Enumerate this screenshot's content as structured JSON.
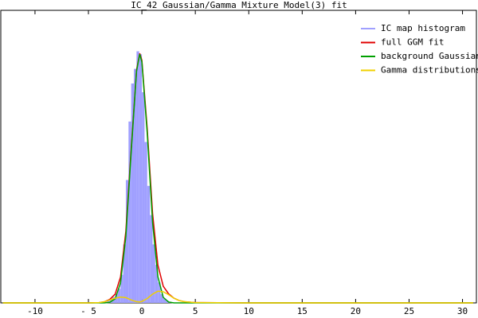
{
  "chart_data": {
    "type": "histogram",
    "title": "IC_42 Gaussian/Gamma Mixture Model(3) fit",
    "name": "IC map histogram",
    "color": "#a0a0ff",
    "bins": [
      -3.5,
      -3.25,
      -3,
      -2.75,
      -2.5,
      -2.25,
      -2,
      -1.75,
      -1.5,
      -1.25,
      -1,
      -0.75,
      -0.5,
      -0.25,
      0,
      0.25,
      0.5,
      0.75,
      1,
      1.25,
      1.5,
      1.75,
      2,
      2.25,
      2.5,
      2.75,
      3
    ],
    "counts": [
      0.005,
      0.01,
      0.015,
      0.02,
      0.03,
      0.048,
      0.096,
      0.2,
      0.42,
      0.62,
      0.75,
      0.8,
      0.86,
      0.85,
      0.72,
      0.55,
      0.4,
      0.3,
      0.2,
      0.13,
      0.07,
      0.03,
      0.015,
      0.008,
      0.004,
      0.002
    ],
    "series": [
      {
        "name": "full GGM fit",
        "color": "#e00000",
        "x": [
          -13,
          -5,
          -4,
          -3.5,
          -3,
          -2.5,
          -2,
          -1.5,
          -1,
          -0.5,
          -0.2,
          0,
          0.5,
          1,
          1.5,
          2,
          2.5,
          3,
          3.5,
          4,
          5,
          10,
          31
        ],
        "values": [
          0,
          0,
          0.001,
          0.004,
          0.012,
          0.03,
          0.088,
          0.245,
          0.526,
          0.796,
          0.853,
          0.829,
          0.595,
          0.306,
          0.129,
          0.057,
          0.031,
          0.016,
          0.008,
          0.004,
          0.001,
          0,
          0
        ]
      },
      {
        "name": "background Gaussian",
        "color": "#00a000",
        "x": [
          -13,
          -5,
          -4,
          -3.5,
          -3,
          -2.5,
          -2,
          -1.5,
          -1,
          -0.5,
          -0.2,
          0,
          0.5,
          1,
          1.5,
          2,
          2.5,
          3,
          3.5,
          4,
          5,
          10,
          31
        ],
        "values": [
          0,
          0,
          0,
          0,
          0.002,
          0.014,
          0.068,
          0.227,
          0.516,
          0.792,
          0.85,
          0.824,
          0.58,
          0.276,
          0.089,
          0.019,
          0.003,
          0,
          0,
          0,
          0,
          0,
          0
        ]
      },
      {
        "name": "Gamma distributions",
        "color": "#f0d000",
        "x": [
          -13,
          -5,
          -4,
          -3.5,
          -3,
          -2.5,
          -2,
          -1.5,
          -1,
          -0.5,
          -0.2,
          0,
          0.5,
          1,
          1.5,
          2,
          2.5,
          3,
          3.5,
          4,
          5,
          10,
          31
        ],
        "values": [
          0,
          0,
          0.001,
          0.004,
          0.01,
          0.016,
          0.02,
          0.018,
          0.01,
          0.004,
          0.003,
          0.005,
          0.015,
          0.03,
          0.04,
          0.038,
          0.028,
          0.016,
          0.008,
          0.004,
          0.001,
          0,
          0
        ]
      }
    ],
    "xlim": [
      -13.2,
      31.3
    ],
    "ylim": [
      0,
      1
    ],
    "xticks": [
      -10,
      {
        "value": -5,
        "label": "- 5"
      },
      0,
      5,
      10,
      15,
      20,
      25,
      30
    ],
    "legend": "upper right"
  }
}
